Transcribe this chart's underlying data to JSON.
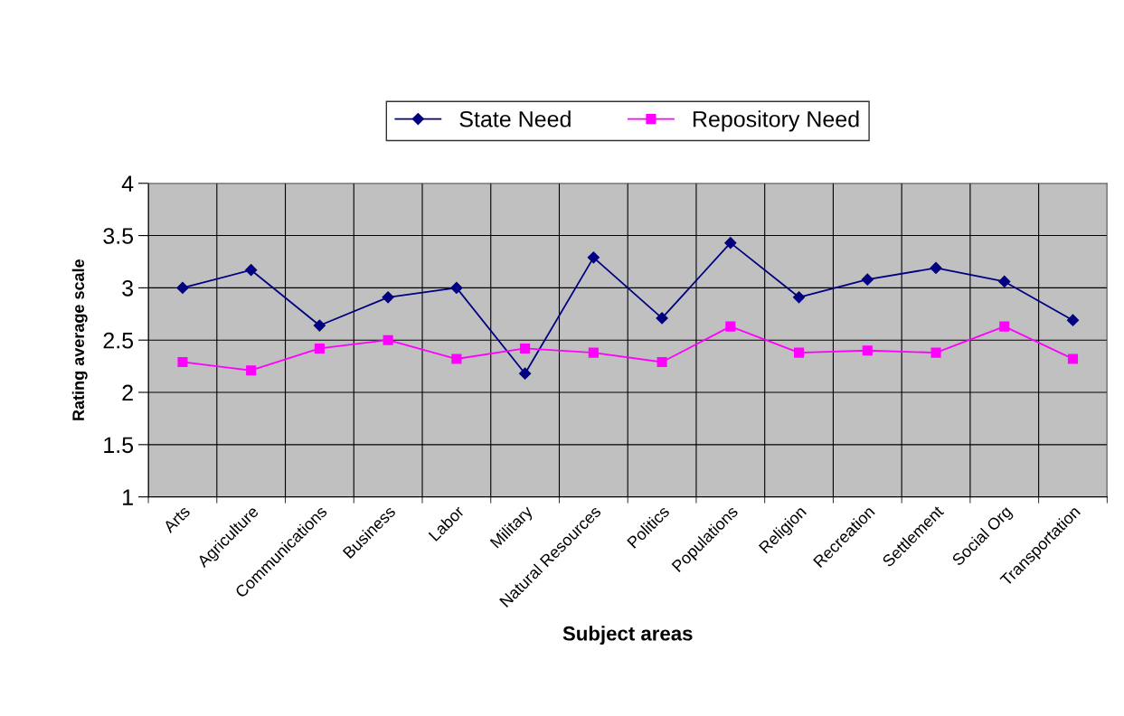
{
  "chart_data": {
    "type": "line",
    "xlabel": "Subject areas",
    "ylabel": "Rating average scale",
    "categories": [
      "Arts",
      "Agriculture",
      "Communications",
      "Business",
      "Labor",
      "Military",
      "Natural Resources",
      "Politics",
      "Populations",
      "Religion",
      "Recreation",
      "Settlement",
      "Social Org",
      "Transportation"
    ],
    "series": [
      {
        "name": "State Need",
        "color": "#000080",
        "marker": "diamond",
        "values": [
          3.0,
          3.17,
          2.64,
          2.91,
          3.0,
          2.18,
          3.29,
          2.71,
          3.43,
          2.91,
          3.08,
          3.19,
          3.06,
          2.69
        ]
      },
      {
        "name": "Repository Need",
        "color": "#ff00ff",
        "marker": "square",
        "values": [
          2.29,
          2.21,
          2.42,
          2.5,
          2.32,
          2.42,
          2.38,
          2.29,
          2.63,
          2.38,
          2.4,
          2.38,
          2.63,
          2.32
        ]
      }
    ],
    "ylim": [
      1,
      4
    ],
    "yticks": [
      1,
      1.5,
      2,
      2.5,
      3,
      3.5,
      4
    ],
    "grid": true,
    "legend": "top",
    "line_style": "solid"
  }
}
